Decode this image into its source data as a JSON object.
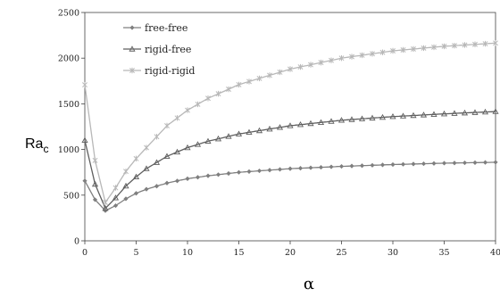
{
  "chart_data": {
    "type": "line",
    "ylabel_main": "Ra",
    "ylabel_sub": "c",
    "xlabel": "α",
    "xlim": [
      0,
      40
    ],
    "ylim": [
      0,
      2500
    ],
    "xticks": [
      0,
      5,
      10,
      15,
      20,
      25,
      30,
      35,
      40
    ],
    "yticks": [
      0,
      500,
      1000,
      1500,
      2000,
      2500
    ],
    "grid": false,
    "legend_position": "top-left",
    "series": [
      {
        "name": "free-free",
        "marker": "diamond",
        "color": "#7f7f7f",
        "x": [
          0,
          1,
          2,
          3,
          4,
          5,
          6,
          8,
          10,
          12,
          15,
          20,
          25,
          30,
          35,
          40
        ],
        "y": [
          657,
          450,
          330,
          385,
          460,
          520,
          565,
          632,
          680,
          712,
          750,
          790,
          815,
          835,
          850,
          860
        ]
      },
      {
        "name": "rigid-free",
        "marker": "triangle",
        "color": "#5f5f5f",
        "x": [
          0,
          1,
          2,
          3,
          4,
          5,
          6,
          8,
          10,
          12,
          15,
          20,
          25,
          30,
          35,
          40
        ],
        "y": [
          1100,
          620,
          355,
          470,
          600,
          700,
          790,
          925,
          1020,
          1090,
          1170,
          1260,
          1320,
          1360,
          1390,
          1415
        ]
      },
      {
        "name": "rigid-rigid",
        "marker": "star",
        "color": "#b8b8b8",
        "x": [
          0,
          1,
          2,
          3,
          4,
          5,
          6,
          8,
          10,
          12,
          15,
          20,
          25,
          30,
          35,
          40
        ],
        "y": [
          1708,
          880,
          420,
          580,
          760,
          900,
          1020,
          1260,
          1430,
          1560,
          1710,
          1880,
          2000,
          2080,
          2130,
          2165
        ]
      }
    ]
  }
}
